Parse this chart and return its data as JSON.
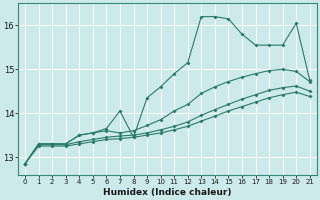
{
  "xlabel": "Humidex (Indice chaleur)",
  "ylabel": "",
  "xlim": [
    -0.5,
    21.5
  ],
  "ylim": [
    12.6,
    16.5
  ],
  "yticks": [
    13,
    14,
    15,
    16
  ],
  "xticks": [
    0,
    1,
    2,
    3,
    4,
    5,
    6,
    7,
    8,
    9,
    10,
    11,
    12,
    13,
    14,
    15,
    16,
    17,
    18,
    19,
    20,
    21
  ],
  "bg_color": "#cceaea",
  "line_color": "#2a7a6a",
  "grid_color": "#ffffff",
  "lines": [
    {
      "x": [
        0,
        1,
        2,
        3,
        4,
        5,
        6,
        7,
        8,
        9,
        10,
        11,
        12,
        13,
        14,
        15,
        16,
        17,
        18,
        19,
        20,
        21
      ],
      "y": [
        12.85,
        13.3,
        13.3,
        13.3,
        13.5,
        13.55,
        13.65,
        14.05,
        13.45,
        14.35,
        14.6,
        14.9,
        15.15,
        16.2,
        16.2,
        16.15,
        15.8,
        15.55,
        15.55,
        15.55,
        16.05,
        14.75
      ]
    },
    {
      "x": [
        0,
        1,
        2,
        3,
        4,
        5,
        6,
        7,
        8,
        9,
        10,
        11,
        12,
        13,
        14,
        15,
        16,
        17,
        18,
        19,
        20,
        21
      ],
      "y": [
        12.85,
        13.3,
        13.3,
        13.3,
        13.5,
        13.55,
        13.6,
        13.55,
        13.6,
        13.72,
        13.85,
        14.05,
        14.2,
        14.45,
        14.6,
        14.72,
        14.82,
        14.9,
        14.97,
        15.0,
        14.95,
        14.72
      ]
    },
    {
      "x": [
        0,
        1,
        2,
        3,
        4,
        5,
        6,
        7,
        8,
        9,
        10,
        11,
        12,
        13,
        14,
        15,
        16,
        17,
        18,
        19,
        20,
        21
      ],
      "y": [
        12.85,
        13.28,
        13.28,
        13.28,
        13.35,
        13.4,
        13.45,
        13.48,
        13.5,
        13.55,
        13.62,
        13.7,
        13.8,
        13.95,
        14.08,
        14.2,
        14.32,
        14.42,
        14.52,
        14.58,
        14.62,
        14.5
      ]
    },
    {
      "x": [
        0,
        1,
        2,
        3,
        4,
        5,
        6,
        7,
        8,
        9,
        10,
        11,
        12,
        13,
        14,
        15,
        16,
        17,
        18,
        19,
        20,
        21
      ],
      "y": [
        12.85,
        13.25,
        13.25,
        13.25,
        13.3,
        13.35,
        13.4,
        13.42,
        13.45,
        13.5,
        13.55,
        13.62,
        13.7,
        13.82,
        13.93,
        14.05,
        14.15,
        14.25,
        14.35,
        14.42,
        14.48,
        14.38
      ]
    }
  ]
}
